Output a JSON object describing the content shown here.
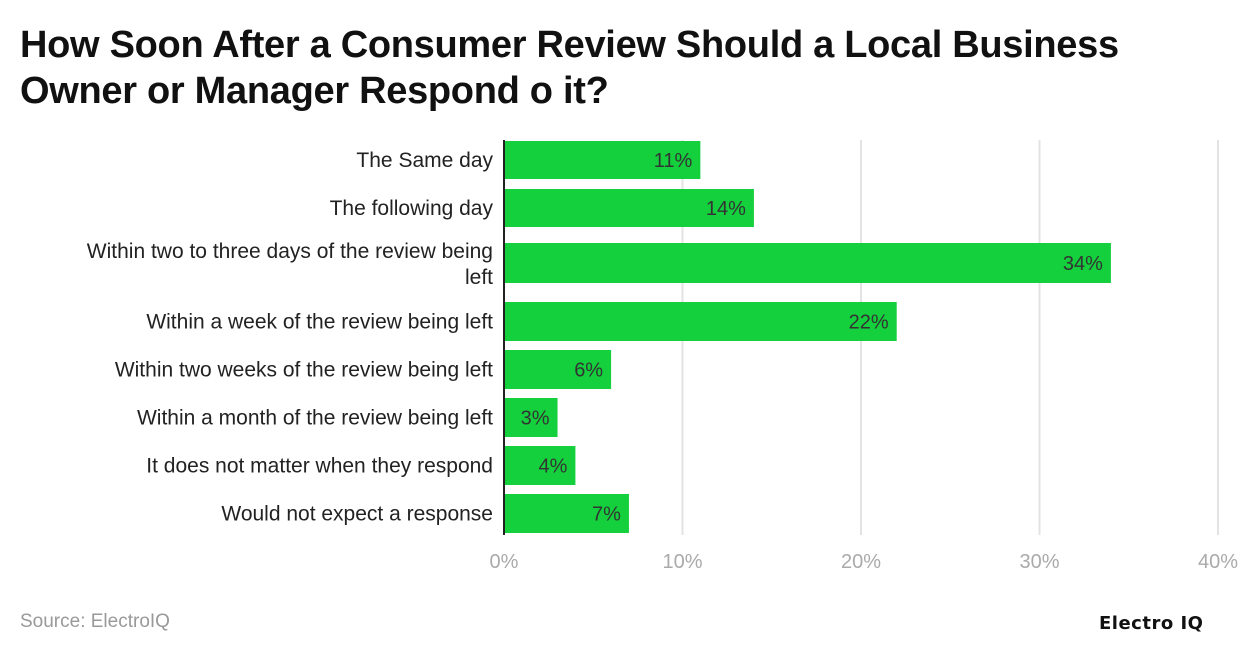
{
  "chart_data": {
    "type": "bar",
    "orientation": "horizontal",
    "title": "How Soon After a Consumer Review Should a Local Business Owner or Manager Respond o it?",
    "categories": [
      "The Same day",
      "The following day",
      "Within two to three days of the review being left",
      "Within a week of the review being left",
      "Within two weeks of the review being left",
      "Within a month of the review being left",
      "It does not matter when they respond",
      "Would not expect a response"
    ],
    "values": [
      11,
      14,
      34,
      22,
      6,
      3,
      4,
      7
    ],
    "data_labels": [
      "11%",
      "14%",
      "34%",
      "22%",
      "6%",
      "3%",
      "4%",
      "7%"
    ],
    "xlim": [
      0,
      40
    ],
    "xticks": [
      0,
      10,
      20,
      30,
      40
    ],
    "xtick_labels": [
      "0%",
      "10%",
      "20%",
      "30%",
      "40%"
    ],
    "xlabel": "",
    "ylabel": "",
    "grid": true,
    "bar_color": "#13d03c"
  },
  "footer": {
    "source": "Source: ElectroIQ",
    "logo": "Electro IQ"
  }
}
